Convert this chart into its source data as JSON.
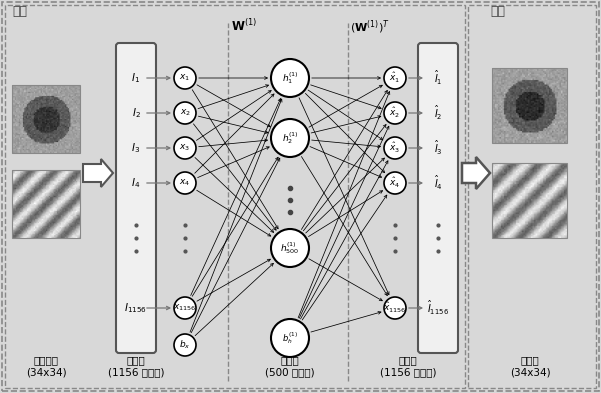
{
  "encoder_label": "编码",
  "decoder_label": "解码",
  "input_block_label": "输入小块\n(34x34)",
  "input_layer_label": "输入层\n(1156 个单元)",
  "hidden_layer_label": "隐含层\n(500 个单元)",
  "output_layer_label": "输出层\n(1156 个单元)",
  "recon_layer_label": "重构层\n(34x34)",
  "bg_color": "#d8d8d8",
  "inner_bg": "#e8e8e8"
}
